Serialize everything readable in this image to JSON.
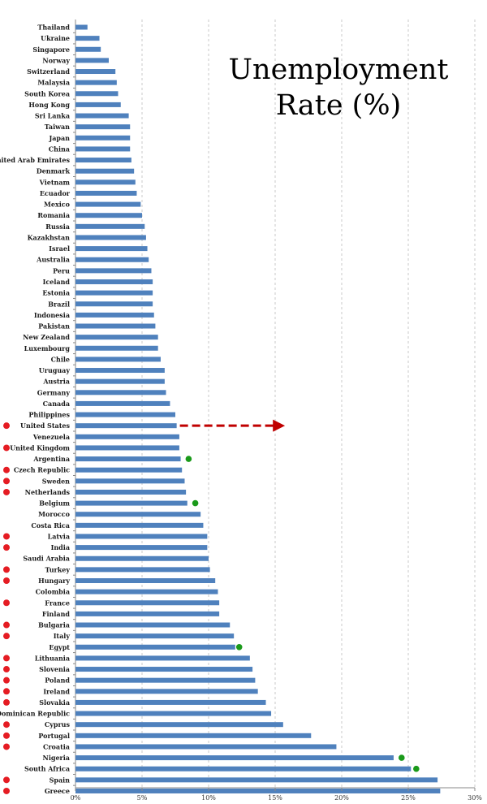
{
  "chart_data": {
    "type": "bar",
    "orientation": "horizontal",
    "title_lines": [
      "Unemployment",
      "Rate (%)"
    ],
    "xlim": [
      0,
      30
    ],
    "ticks": [
      0,
      5,
      10,
      15,
      20,
      25,
      30
    ],
    "tick_labels": [
      "0%",
      "5%",
      "10%",
      "15%",
      "20%",
      "25%",
      "30%"
    ],
    "bar_color": "#4f81bd",
    "grid": "vertical dashed",
    "categories": [
      "Thailand",
      "Ukraine",
      "Singapore",
      "Norway",
      "Switzerland",
      "Malaysia",
      "South Korea",
      "Hong Kong",
      "Sri Lanka",
      "Taiwan",
      "Japan",
      "China",
      "United Arab Emirates",
      "Denmark",
      "Vietnam",
      "Ecuador",
      "Mexico",
      "Romania",
      "Russia",
      "Kazakhstan",
      "Israel",
      "Australia",
      "Peru",
      "Iceland",
      "Estonia",
      "Brazil",
      "Indonesia",
      "Pakistan",
      "New Zealand",
      "Luxembourg",
      "Chile",
      "Uruguay",
      "Austria",
      "Germany",
      "Canada",
      "Philippines",
      "United States",
      "Venezuela",
      "United Kingdom",
      "Argentina",
      "Czech Republic",
      "Sweden",
      "Netherlands",
      "Belgium",
      "Morocco",
      "Costa Rica",
      "Latvia",
      "India",
      "Saudi Arabia",
      "Turkey",
      "Hungary",
      "Colombia",
      "France",
      "Finland",
      "Bulgaria",
      "Italy",
      "Egypt",
      "Lithuania",
      "Slovenia",
      "Poland",
      "Ireland",
      "Slovakia",
      "Dominican Republic",
      "Cyprus",
      "Portugal",
      "Croatia",
      "Nigeria",
      "South Africa",
      "Spain",
      "Greece"
    ],
    "values": [
      0.9,
      1.8,
      1.9,
      2.5,
      3.0,
      3.1,
      3.2,
      3.4,
      4.0,
      4.1,
      4.1,
      4.1,
      4.2,
      4.4,
      4.5,
      4.6,
      4.9,
      5.0,
      5.2,
      5.3,
      5.4,
      5.5,
      5.7,
      5.8,
      5.8,
      5.8,
      5.9,
      6.0,
      6.2,
      6.2,
      6.4,
      6.7,
      6.7,
      6.8,
      7.1,
      7.5,
      7.6,
      7.8,
      7.8,
      7.9,
      8.0,
      8.2,
      8.3,
      8.4,
      9.4,
      9.6,
      9.9,
      9.9,
      10.0,
      10.1,
      10.5,
      10.7,
      10.8,
      10.8,
      11.6,
      11.9,
      12.0,
      13.1,
      13.3,
      13.5,
      13.7,
      14.3,
      14.7,
      15.6,
      17.7,
      19.6,
      23.9,
      25.2,
      27.2,
      27.4
    ],
    "red_marked": [
      "United States",
      "United Kingdom",
      "Czech Republic",
      "Sweden",
      "Netherlands",
      "Latvia",
      "India",
      "Turkey",
      "Hungary",
      "France",
      "Bulgaria",
      "Italy",
      "Lithuania",
      "Slovenia",
      "Poland",
      "Ireland",
      "Slovakia",
      "Cyprus",
      "Portugal",
      "Croatia",
      "Spain",
      "Greece"
    ],
    "green_marked": [
      {
        "category": "Argentina",
        "x": 8.5
      },
      {
        "category": "Belgium",
        "x": 9.0
      },
      {
        "category": "Egypt",
        "x": 12.3
      },
      {
        "category": "Nigeria",
        "x": 24.5
      },
      {
        "category": "South Africa",
        "x": 25.6
      }
    ],
    "arrow": {
      "category": "United States",
      "from": 7.6,
      "to": 15.5,
      "color": "#c00000"
    },
    "marker_colors": {
      "red": "#e51c23",
      "green": "#1a9a1a"
    }
  }
}
